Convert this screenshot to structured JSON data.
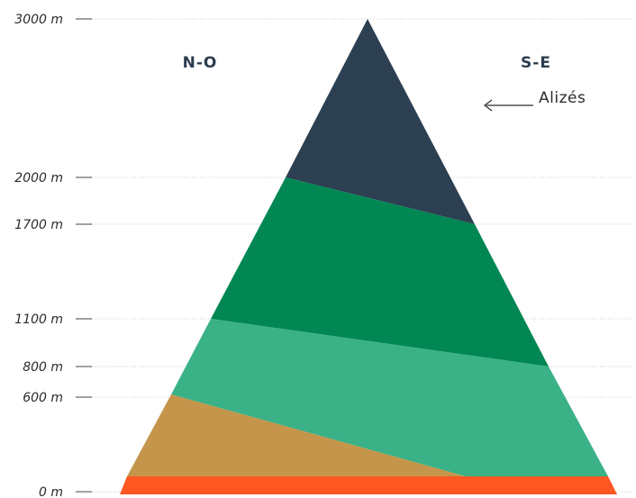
{
  "altitude_ticks": [
    {
      "label": "3000 m",
      "value": 3000
    },
    {
      "label": "2000 m",
      "value": 2000
    },
    {
      "label": "1700 m",
      "value": 1700
    },
    {
      "label": "1100 m",
      "value": 1100
    },
    {
      "label": "800 m",
      "value": 800
    },
    {
      "label": "600 m",
      "value": 600
    },
    {
      "label": "0 m",
      "value": 0
    }
  ],
  "sides": {
    "left": "N-O",
    "right": "S-E"
  },
  "wind": {
    "label": "Alizés",
    "direction": "from S-E toward N-O"
  },
  "zones": [
    {
      "id": "summit",
      "color": "#2c4052",
      "lower_left_m": 2000,
      "lower_right_m": 1700
    },
    {
      "id": "upper-forest",
      "color": "#008753",
      "lower_left_m": 1100,
      "lower_right_m": 800
    },
    {
      "id": "mid-forest",
      "color": "#3ab186",
      "lower_left_m": 600,
      "lower_right_m": 0
    },
    {
      "id": "dry-lowland",
      "color": "#c4954a",
      "lower_left_m": 0,
      "lower_right_m": 0
    },
    {
      "id": "coast",
      "color": "#ff5722",
      "lower_left_m": 0,
      "lower_right_m": 0
    }
  ]
}
